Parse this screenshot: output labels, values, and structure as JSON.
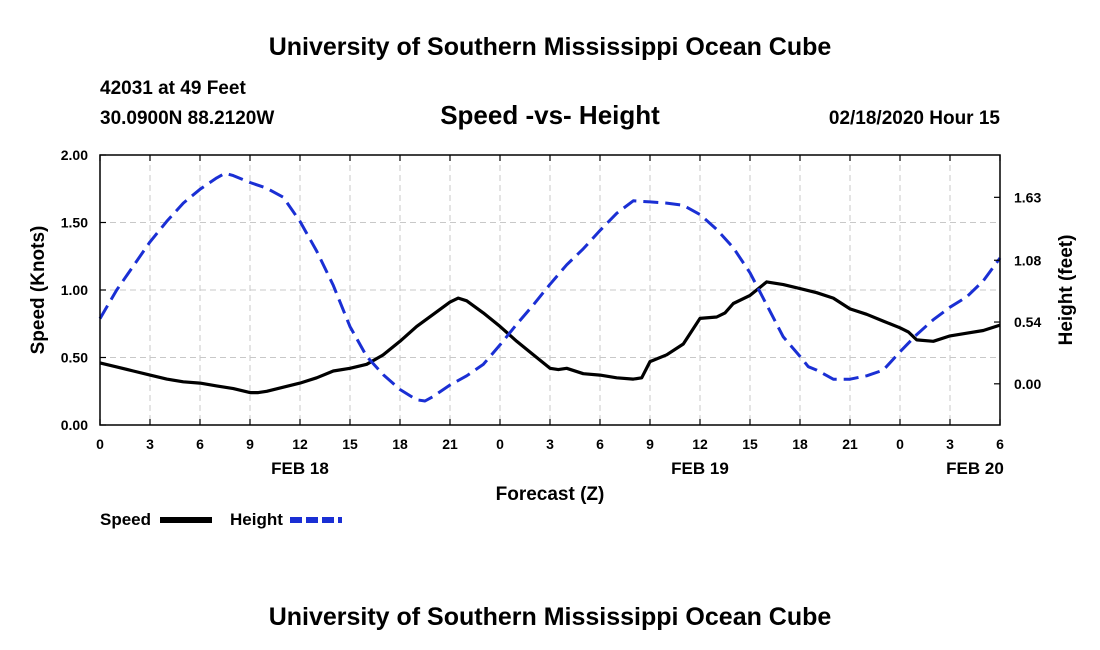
{
  "page": {
    "title_top": "University of Southern Mississippi Ocean Cube",
    "title_bottom": "University of Southern Mississippi Ocean Cube",
    "station": "42031 at 49 Feet",
    "coords": "30.0900N 88.2120W",
    "subtitle": "Speed -vs- Height",
    "datetime": "02/18/2020 Hour 15"
  },
  "chart_data": {
    "type": "line",
    "title": "Speed -vs- Height",
    "xlabel": "Forecast (Z)",
    "ylabel": "Speed (Knots)",
    "y2label": "Height (feet)",
    "xlim": [
      0,
      54
    ],
    "ylim": [
      0,
      2.0
    ],
    "y2lim": [
      -0.36,
      2.0
    ],
    "grid": true,
    "x_ticks": [
      {
        "x": 0,
        "label": "0"
      },
      {
        "x": 3,
        "label": "3"
      },
      {
        "x": 6,
        "label": "6"
      },
      {
        "x": 9,
        "label": "9"
      },
      {
        "x": 12,
        "label": "12"
      },
      {
        "x": 15,
        "label": "15"
      },
      {
        "x": 18,
        "label": "18"
      },
      {
        "x": 21,
        "label": "21"
      },
      {
        "x": 24,
        "label": "0"
      },
      {
        "x": 27,
        "label": "3"
      },
      {
        "x": 30,
        "label": "6"
      },
      {
        "x": 33,
        "label": "9"
      },
      {
        "x": 36,
        "label": "12"
      },
      {
        "x": 39,
        "label": "15"
      },
      {
        "x": 42,
        "label": "18"
      },
      {
        "x": 45,
        "label": "21"
      },
      {
        "x": 48,
        "label": "0"
      },
      {
        "x": 51,
        "label": "3"
      },
      {
        "x": 54,
        "label": "6"
      }
    ],
    "date_labels": [
      {
        "x": 12,
        "label": "FEB 18"
      },
      {
        "x": 36,
        "label": "FEB 19"
      },
      {
        "x": 52.5,
        "label": "FEB 20"
      }
    ],
    "y_ticks": [
      {
        "y": 0.0,
        "label": "0.00"
      },
      {
        "y": 0.5,
        "label": "0.50"
      },
      {
        "y": 1.0,
        "label": "1.00"
      },
      {
        "y": 1.5,
        "label": "1.50"
      },
      {
        "y": 2.0,
        "label": "2.00"
      }
    ],
    "y2_ticks": [
      {
        "y": 0.0,
        "label": "0.00"
      },
      {
        "y": 0.54,
        "label": "0.54"
      },
      {
        "y": 1.08,
        "label": "1.08"
      },
      {
        "y": 1.63,
        "label": "1.63"
      }
    ],
    "legend": [
      {
        "name": "Speed",
        "color": "#000000",
        "style": "solid"
      },
      {
        "name": "Height",
        "color": "#1a2fd4",
        "style": "dashed"
      }
    ],
    "series": [
      {
        "name": "Speed",
        "axis": "left",
        "color": "#000000",
        "style": "solid",
        "x": [
          0,
          1,
          2,
          3,
          4,
          5,
          6,
          7,
          8,
          9,
          9.5,
          10,
          11,
          12,
          13,
          14,
          15,
          16,
          17,
          18,
          19,
          20,
          21,
          21.5,
          22,
          23,
          24,
          25,
          26,
          27,
          27.5,
          28,
          29,
          30,
          31,
          32,
          32.5,
          33,
          34,
          35,
          36,
          37,
          37.5,
          38,
          39,
          40,
          41,
          42,
          43,
          44,
          45,
          46,
          47,
          48,
          48.5,
          49,
          50,
          51,
          52,
          53,
          54
        ],
        "y": [
          0.46,
          0.43,
          0.4,
          0.37,
          0.34,
          0.32,
          0.31,
          0.29,
          0.27,
          0.24,
          0.24,
          0.25,
          0.28,
          0.31,
          0.35,
          0.4,
          0.42,
          0.45,
          0.52,
          0.62,
          0.73,
          0.82,
          0.91,
          0.94,
          0.92,
          0.83,
          0.73,
          0.62,
          0.52,
          0.42,
          0.41,
          0.42,
          0.38,
          0.37,
          0.35,
          0.34,
          0.35,
          0.47,
          0.52,
          0.6,
          0.79,
          0.8,
          0.83,
          0.9,
          0.96,
          1.06,
          1.04,
          1.01,
          0.98,
          0.94,
          0.86,
          0.82,
          0.77,
          0.72,
          0.69,
          0.63,
          0.62,
          0.66,
          0.68,
          0.7,
          0.74
        ]
      },
      {
        "name": "Height",
        "axis": "right",
        "color": "#1a2fd4",
        "style": "dashed",
        "x": [
          0,
          1,
          2,
          3,
          4,
          5,
          6,
          7,
          7.5,
          8,
          9,
          10,
          11,
          12,
          13,
          14,
          15,
          16,
          17,
          18,
          19,
          19.5,
          20,
          21,
          22,
          23,
          24,
          25,
          26,
          27,
          28,
          29,
          30,
          31,
          32,
          33,
          34,
          35,
          36,
          37,
          38,
          39,
          40,
          41,
          42,
          42.5,
          43,
          44,
          45,
          46,
          47,
          48,
          49,
          50,
          51,
          52,
          53,
          54
        ],
        "y": [
          0.57,
          0.82,
          1.03,
          1.24,
          1.42,
          1.58,
          1.7,
          1.8,
          1.84,
          1.82,
          1.76,
          1.71,
          1.63,
          1.42,
          1.16,
          0.86,
          0.5,
          0.24,
          0.08,
          -0.05,
          -0.14,
          -0.15,
          -0.11,
          -0.01,
          0.07,
          0.17,
          0.34,
          0.52,
          0.69,
          0.87,
          1.04,
          1.18,
          1.34,
          1.49,
          1.6,
          1.59,
          1.58,
          1.56,
          1.48,
          1.35,
          1.19,
          0.97,
          0.69,
          0.41,
          0.24,
          0.15,
          0.12,
          0.04,
          0.04,
          0.07,
          0.12,
          0.28,
          0.43,
          0.56,
          0.67,
          0.76,
          0.9,
          1.1
        ]
      }
    ]
  }
}
